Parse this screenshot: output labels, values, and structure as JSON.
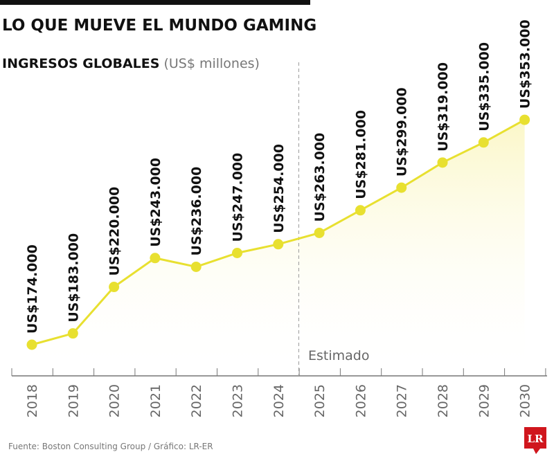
{
  "chart_data": {
    "type": "line",
    "title": "LO QUE MUEVE EL MUNDO GAMING",
    "subtitle": "INGRESOS GLOBALES",
    "unit": "(US$ millones)",
    "categories": [
      "2018",
      "2019",
      "2020",
      "2021",
      "2022",
      "2023",
      "2024",
      "2025",
      "2026",
      "2027",
      "2028",
      "2029",
      "2030"
    ],
    "values": [
      174000,
      183000,
      220000,
      243000,
      236000,
      247000,
      254000,
      263000,
      281000,
      299000,
      319000,
      335000,
      353000
    ],
    "data_labels": [
      "US$174.000",
      "US$183.000",
      "US$220.000",
      "US$243.000",
      "US$236.000",
      "US$247.000",
      "US$254.000",
      "US$263.000",
      "US$281.000",
      "US$299.000",
      "US$319.000",
      "US$335.000",
      "US$353.000"
    ],
    "annotation": "Estimado",
    "estimate_from": "2025",
    "source": "Fuente: Boston Consulting Group / Gráfico: LR-ER",
    "logo": "LR",
    "colors": {
      "line": "#e8e030",
      "fill": "#fdfbe0",
      "logo": "#d0161d"
    },
    "grid": false,
    "legend": "none"
  }
}
